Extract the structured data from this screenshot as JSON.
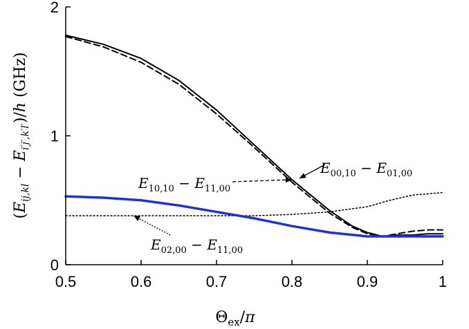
{
  "chart_data": {
    "type": "line",
    "xlabel": "Θex/π",
    "ylabel": "(Eij,kl − Ei′j′,k′l′)/h (GHz)",
    "xlim": [
      0.5,
      1.0
    ],
    "ylim": [
      0,
      2
    ],
    "x_ticks": [
      "0.5",
      "0.6",
      "0.7",
      "0.8",
      "0.9",
      "1"
    ],
    "y_ticks": [
      "0",
      "1",
      "2"
    ],
    "grid": false,
    "series": [
      {
        "style": "solid",
        "color": "#000000",
        "x": [
          0.5,
          0.55,
          0.6,
          0.65,
          0.7,
          0.75,
          0.8,
          0.85,
          0.88,
          0.9,
          0.92,
          0.94,
          0.96,
          0.98,
          1.0
        ],
        "y": [
          1.78,
          1.71,
          1.6,
          1.43,
          1.2,
          0.93,
          0.66,
          0.42,
          0.3,
          0.25,
          0.22,
          0.23,
          0.23,
          0.24,
          0.24
        ]
      },
      {
        "style": "dashed",
        "color": "#000000",
        "x": [
          0.5,
          0.55,
          0.6,
          0.65,
          0.7,
          0.75,
          0.8,
          0.85,
          0.88,
          0.9,
          0.92,
          0.94,
          0.96,
          0.98,
          1.0
        ],
        "y": [
          1.77,
          1.69,
          1.57,
          1.4,
          1.17,
          0.91,
          0.64,
          0.4,
          0.29,
          0.24,
          0.22,
          0.24,
          0.26,
          0.27,
          0.27
        ]
      },
      {
        "style": "dotted",
        "color": "#000000",
        "x": [
          0.5,
          0.6,
          0.7,
          0.75,
          0.8,
          0.85,
          0.9,
          0.93,
          0.96,
          1.0
        ],
        "y": [
          0.38,
          0.38,
          0.38,
          0.38,
          0.39,
          0.41,
          0.45,
          0.5,
          0.54,
          0.56
        ]
      },
      {
        "style": "solid",
        "color": "#1f2fd9",
        "x": [
          0.5,
          0.55,
          0.6,
          0.65,
          0.7,
          0.75,
          0.8,
          0.85,
          0.9,
          0.92,
          0.95,
          1.0
        ],
        "y": [
          0.53,
          0.52,
          0.5,
          0.46,
          0.41,
          0.36,
          0.3,
          0.25,
          0.22,
          0.22,
          0.22,
          0.22
        ]
      }
    ],
    "annotations": [
      {
        "text": "E00,10 − E01,00",
        "arrow_to": [
          0.81,
          0.67
        ],
        "anchor": "right",
        "arrow_style": "solid"
      },
      {
        "text": "E10,10 − E11,00",
        "arrow_to": [
          0.8,
          0.66
        ],
        "anchor": "left",
        "arrow_style": "dashed"
      },
      {
        "text": "E02,00 − E11,00",
        "arrow_to": [
          0.59,
          0.38
        ],
        "anchor": "below",
        "arrow_style": "dotted"
      }
    ]
  }
}
